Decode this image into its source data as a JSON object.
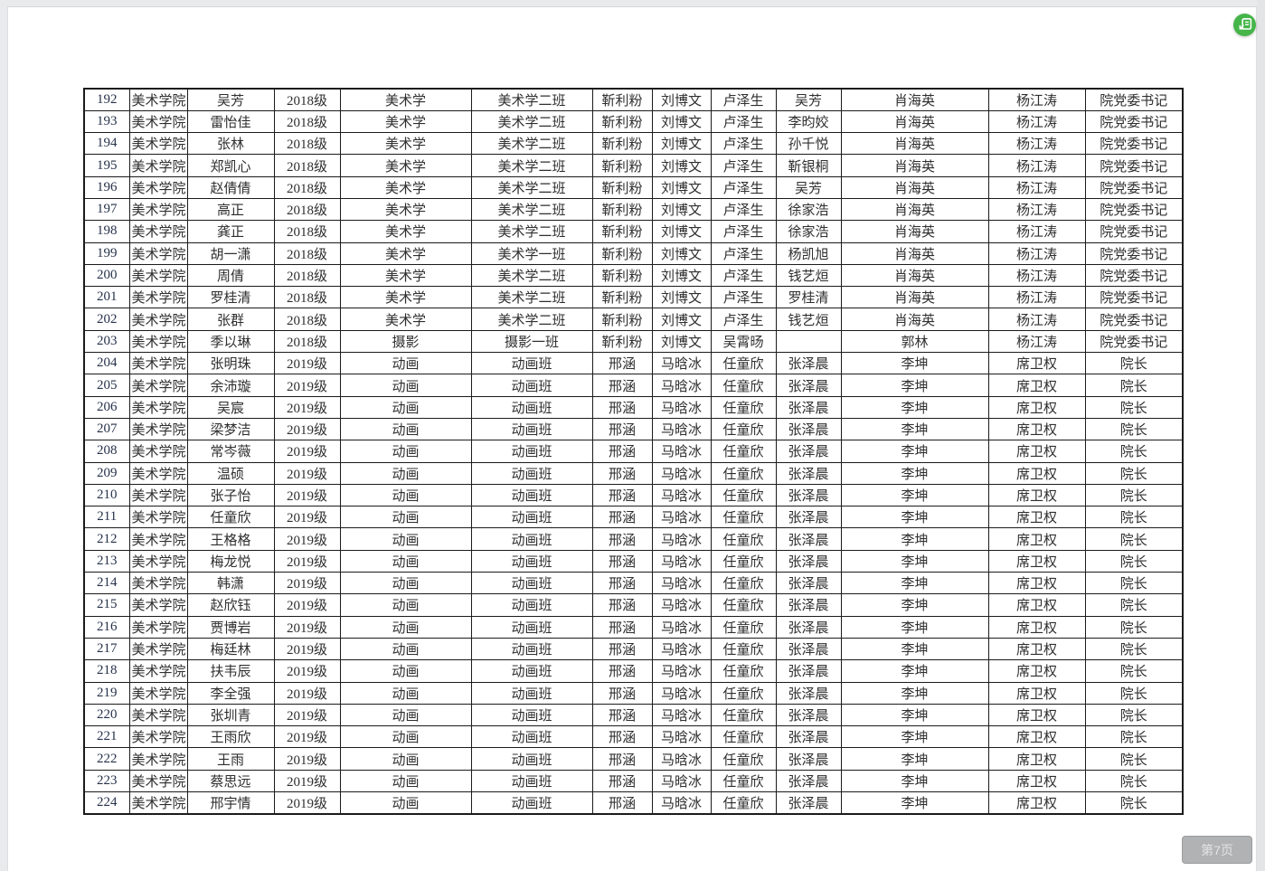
{
  "viewer": {
    "page_indicator": "第7页",
    "badge_color": "#45b549"
  },
  "colors": {
    "background": "#e9eaec",
    "page": "#ffffff",
    "table_border": "#1b1b1b",
    "text": "#2f2f2f",
    "number_text": "#26324b",
    "badge_green": "#45b549",
    "page_pill_bg": "#b1b2b4"
  },
  "table": {
    "rows": [
      [
        "192",
        "美术学院",
        "吴芳",
        "2018级",
        "美术学",
        "美术学二班",
        "靳利粉",
        "刘博文",
        "卢泽生",
        "吴芳",
        "肖海英",
        "杨江涛",
        "院党委书记"
      ],
      [
        "193",
        "美术学院",
        "雷怡佳",
        "2018级",
        "美术学",
        "美术学二班",
        "靳利粉",
        "刘博文",
        "卢泽生",
        "李昀姣",
        "肖海英",
        "杨江涛",
        "院党委书记"
      ],
      [
        "194",
        "美术学院",
        "张林",
        "2018级",
        "美术学",
        "美术学二班",
        "靳利粉",
        "刘博文",
        "卢泽生",
        "孙千悦",
        "肖海英",
        "杨江涛",
        "院党委书记"
      ],
      [
        "195",
        "美术学院",
        "郑凯心",
        "2018级",
        "美术学",
        "美术学二班",
        "靳利粉",
        "刘博文",
        "卢泽生",
        "靳银桐",
        "肖海英",
        "杨江涛",
        "院党委书记"
      ],
      [
        "196",
        "美术学院",
        "赵倩倩",
        "2018级",
        "美术学",
        "美术学二班",
        "靳利粉",
        "刘博文",
        "卢泽生",
        "吴芳",
        "肖海英",
        "杨江涛",
        "院党委书记"
      ],
      [
        "197",
        "美术学院",
        "高正",
        "2018级",
        "美术学",
        "美术学二班",
        "靳利粉",
        "刘博文",
        "卢泽生",
        "徐家浩",
        "肖海英",
        "杨江涛",
        "院党委书记"
      ],
      [
        "198",
        "美术学院",
        "龚正",
        "2018级",
        "美术学",
        "美术学二班",
        "靳利粉",
        "刘博文",
        "卢泽生",
        "徐家浩",
        "肖海英",
        "杨江涛",
        "院党委书记"
      ],
      [
        "199",
        "美术学院",
        "胡一潇",
        "2018级",
        "美术学",
        "美术学一班",
        "靳利粉",
        "刘博文",
        "卢泽生",
        "杨凯旭",
        "肖海英",
        "杨江涛",
        "院党委书记"
      ],
      [
        "200",
        "美术学院",
        "周倩",
        "2018级",
        "美术学",
        "美术学二班",
        "靳利粉",
        "刘博文",
        "卢泽生",
        "钱艺烜",
        "肖海英",
        "杨江涛",
        "院党委书记"
      ],
      [
        "201",
        "美术学院",
        "罗桂清",
        "2018级",
        "美术学",
        "美术学二班",
        "靳利粉",
        "刘博文",
        "卢泽生",
        "罗桂清",
        "肖海英",
        "杨江涛",
        "院党委书记"
      ],
      [
        "202",
        "美术学院",
        "张群",
        "2018级",
        "美术学",
        "美术学二班",
        "靳利粉",
        "刘博文",
        "卢泽生",
        "钱艺烜",
        "肖海英",
        "杨江涛",
        "院党委书记"
      ],
      [
        "203",
        "美术学院",
        "季以琳",
        "2018级",
        "摄影",
        "摄影一班",
        "靳利粉",
        "刘博文",
        "吴霄旸",
        "",
        "郭林",
        "杨江涛",
        "院党委书记"
      ],
      [
        "204",
        "美术学院",
        "张明珠",
        "2019级",
        "动画",
        "动画班",
        "邢涵",
        "马晗冰",
        "任童欣",
        "张泽晨",
        "李坤",
        "席卫权",
        "院长"
      ],
      [
        "205",
        "美术学院",
        "余沛璇",
        "2019级",
        "动画",
        "动画班",
        "邢涵",
        "马晗冰",
        "任童欣",
        "张泽晨",
        "李坤",
        "席卫权",
        "院长"
      ],
      [
        "206",
        "美术学院",
        "吴宸",
        "2019级",
        "动画",
        "动画班",
        "邢涵",
        "马晗冰",
        "任童欣",
        "张泽晨",
        "李坤",
        "席卫权",
        "院长"
      ],
      [
        "207",
        "美术学院",
        "梁梦洁",
        "2019级",
        "动画",
        "动画班",
        "邢涵",
        "马晗冰",
        "任童欣",
        "张泽晨",
        "李坤",
        "席卫权",
        "院长"
      ],
      [
        "208",
        "美术学院",
        "常岑薇",
        "2019级",
        "动画",
        "动画班",
        "邢涵",
        "马晗冰",
        "任童欣",
        "张泽晨",
        "李坤",
        "席卫权",
        "院长"
      ],
      [
        "209",
        "美术学院",
        "温硕",
        "2019级",
        "动画",
        "动画班",
        "邢涵",
        "马晗冰",
        "任童欣",
        "张泽晨",
        "李坤",
        "席卫权",
        "院长"
      ],
      [
        "210",
        "美术学院",
        "张子怡",
        "2019级",
        "动画",
        "动画班",
        "邢涵",
        "马晗冰",
        "任童欣",
        "张泽晨",
        "李坤",
        "席卫权",
        "院长"
      ],
      [
        "211",
        "美术学院",
        "任童欣",
        "2019级",
        "动画",
        "动画班",
        "邢涵",
        "马晗冰",
        "任童欣",
        "张泽晨",
        "李坤",
        "席卫权",
        "院长"
      ],
      [
        "212",
        "美术学院",
        "王格格",
        "2019级",
        "动画",
        "动画班",
        "邢涵",
        "马晗冰",
        "任童欣",
        "张泽晨",
        "李坤",
        "席卫权",
        "院长"
      ],
      [
        "213",
        "美术学院",
        "梅龙悦",
        "2019级",
        "动画",
        "动画班",
        "邢涵",
        "马晗冰",
        "任童欣",
        "张泽晨",
        "李坤",
        "席卫权",
        "院长"
      ],
      [
        "214",
        "美术学院",
        "韩潇",
        "2019级",
        "动画",
        "动画班",
        "邢涵",
        "马晗冰",
        "任童欣",
        "张泽晨",
        "李坤",
        "席卫权",
        "院长"
      ],
      [
        "215",
        "美术学院",
        "赵欣钰",
        "2019级",
        "动画",
        "动画班",
        "邢涵",
        "马晗冰",
        "任童欣",
        "张泽晨",
        "李坤",
        "席卫权",
        "院长"
      ],
      [
        "216",
        "美术学院",
        "贾博岩",
        "2019级",
        "动画",
        "动画班",
        "邢涵",
        "马晗冰",
        "任童欣",
        "张泽晨",
        "李坤",
        "席卫权",
        "院长"
      ],
      [
        "217",
        "美术学院",
        "梅廷林",
        "2019级",
        "动画",
        "动画班",
        "邢涵",
        "马晗冰",
        "任童欣",
        "张泽晨",
        "李坤",
        "席卫权",
        "院长"
      ],
      [
        "218",
        "美术学院",
        "扶韦辰",
        "2019级",
        "动画",
        "动画班",
        "邢涵",
        "马晗冰",
        "任童欣",
        "张泽晨",
        "李坤",
        "席卫权",
        "院长"
      ],
      [
        "219",
        "美术学院",
        "李全强",
        "2019级",
        "动画",
        "动画班",
        "邢涵",
        "马晗冰",
        "任童欣",
        "张泽晨",
        "李坤",
        "席卫权",
        "院长"
      ],
      [
        "220",
        "美术学院",
        "张圳青",
        "2019级",
        "动画",
        "动画班",
        "邢涵",
        "马晗冰",
        "任童欣",
        "张泽晨",
        "李坤",
        "席卫权",
        "院长"
      ],
      [
        "221",
        "美术学院",
        "王雨欣",
        "2019级",
        "动画",
        "动画班",
        "邢涵",
        "马晗冰",
        "任童欣",
        "张泽晨",
        "李坤",
        "席卫权",
        "院长"
      ],
      [
        "222",
        "美术学院",
        "王雨",
        "2019级",
        "动画",
        "动画班",
        "邢涵",
        "马晗冰",
        "任童欣",
        "张泽晨",
        "李坤",
        "席卫权",
        "院长"
      ],
      [
        "223",
        "美术学院",
        "蔡思远",
        "2019级",
        "动画",
        "动画班",
        "邢涵",
        "马晗冰",
        "任童欣",
        "张泽晨",
        "李坤",
        "席卫权",
        "院长"
      ],
      [
        "224",
        "美术学院",
        "邢宇情",
        "2019级",
        "动画",
        "动画班",
        "邢涵",
        "马晗冰",
        "任童欣",
        "张泽晨",
        "李坤",
        "席卫权",
        "院长"
      ]
    ]
  }
}
